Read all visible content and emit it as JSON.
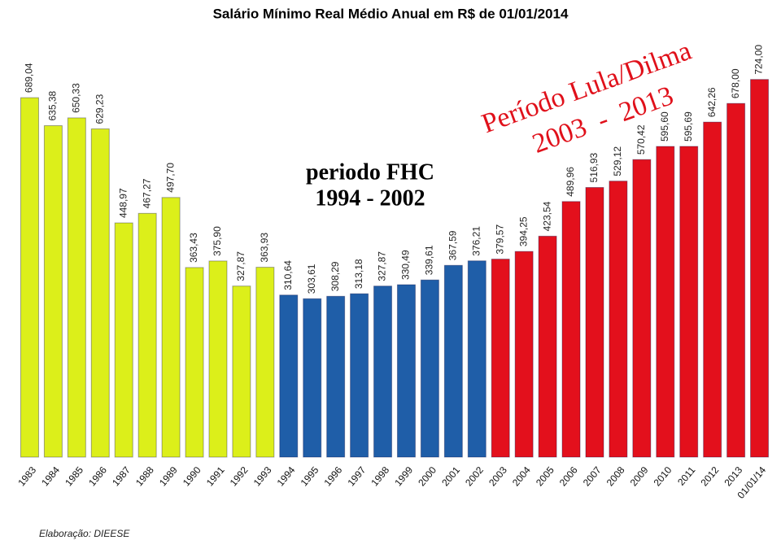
{
  "chart_data": {
    "type": "bar",
    "title": "Salário Mínimo Real Médio Anual em R$ de 01/01/2014",
    "categories": [
      "1983",
      "1984",
      "1985",
      "1986",
      "1987",
      "1988",
      "1989",
      "1990",
      "1991",
      "1992",
      "1993",
      "1994",
      "1995",
      "1996",
      "1997",
      "1998",
      "1999",
      "2000",
      "2001",
      "2002",
      "2003",
      "2004",
      "2005",
      "2006",
      "2007",
      "2008",
      "2009",
      "2010",
      "2011",
      "2012",
      "2013",
      "01/01/14"
    ],
    "values": [
      689.04,
      635.38,
      650.33,
      629.23,
      448.97,
      467.27,
      497.7,
      363.43,
      375.9,
      327.87,
      363.93,
      310.64,
      303.61,
      308.29,
      313.18,
      327.87,
      330.49,
      339.61,
      367.59,
      376.21,
      379.57,
      394.25,
      423.54,
      489.96,
      516.93,
      529.12,
      570.42,
      595.6,
      595.69,
      642.26,
      678.0,
      724.0
    ],
    "value_labels": [
      "689,04",
      "635,38",
      "650,33",
      "629,23",
      "448,97",
      "467,27",
      "497,70",
      "363,43",
      "375,90",
      "327,87",
      "363,93",
      "310,64",
      "303,61",
      "308,29",
      "313,18",
      "327,87",
      "330,49",
      "339,61",
      "367,59",
      "376,21",
      "379,57",
      "394,25",
      "423,54",
      "489,96",
      "516,93",
      "529,12",
      "570,42",
      "595,60",
      "595,69",
      "642,26",
      "678,00",
      "724,00"
    ],
    "colors": [
      "#dcef1a",
      "#dcef1a",
      "#dcef1a",
      "#dcef1a",
      "#dcef1a",
      "#dcef1a",
      "#dcef1a",
      "#dcef1a",
      "#dcef1a",
      "#dcef1a",
      "#dcef1a",
      "#1f5ea8",
      "#1f5ea8",
      "#1f5ea8",
      "#1f5ea8",
      "#1f5ea8",
      "#1f5ea8",
      "#1f5ea8",
      "#1f5ea8",
      "#1f5ea8",
      "#e3101c",
      "#e3101c",
      "#e3101c",
      "#e3101c",
      "#e3101c",
      "#e3101c",
      "#e3101c",
      "#e3101c",
      "#e3101c",
      "#e3101c",
      "#e3101c",
      "#e3101c"
    ],
    "ylim": [
      0,
      750
    ],
    "annotations": [
      "periodo FHC",
      "1994 - 2002",
      "Período Lula/Dilma",
      "2003  -  2013"
    ],
    "source": "Elaboração: DIEESE"
  }
}
